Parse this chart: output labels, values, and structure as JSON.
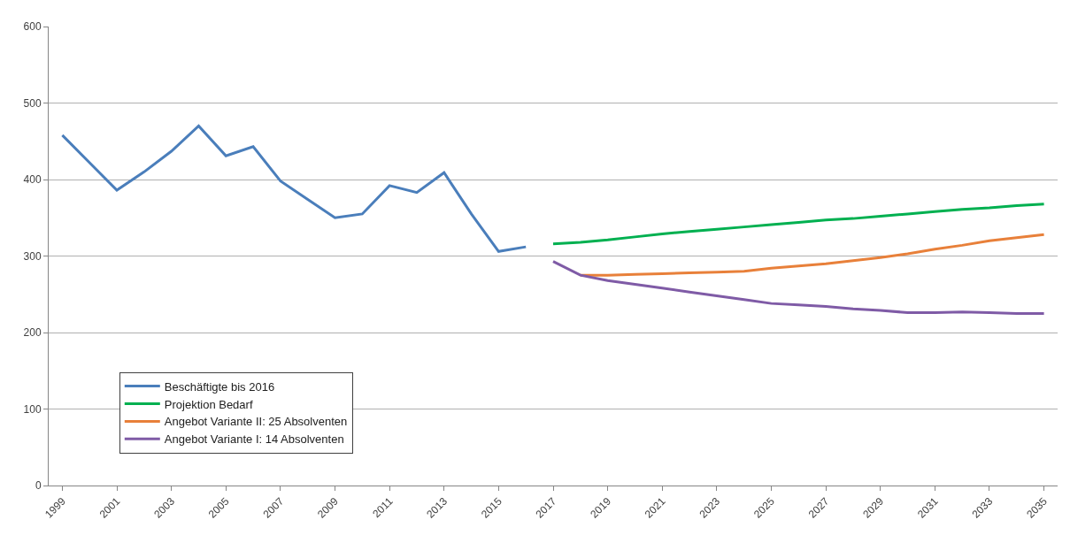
{
  "chart_data": {
    "type": "line",
    "categories": [
      "1999",
      null,
      "2001",
      null,
      "2003",
      null,
      "2005",
      null,
      "2007",
      null,
      "2009",
      null,
      "2011",
      null,
      "2013",
      null,
      "2015",
      null,
      "2017",
      null,
      "2019",
      null,
      "2021",
      null,
      "2023",
      null,
      "2025",
      null,
      "2027",
      null,
      "2029",
      null,
      "2031",
      null,
      "2033",
      null,
      "2035"
    ],
    "series": [
      {
        "name": "Beschäftigte bis 2016",
        "color": "#4a7ebb",
        "values": [
          458,
          422,
          386,
          410,
          437,
          470,
          431,
          443,
          398,
          374,
          350,
          355,
          392,
          383,
          409,
          355,
          306,
          312,
          null,
          null,
          null,
          null,
          null,
          null,
          null,
          null,
          null,
          null,
          null,
          null,
          null,
          null,
          null,
          null,
          null,
          null,
          null
        ]
      },
      {
        "name": "Projektion Bedarf",
        "color": "#00b050",
        "values": [
          null,
          null,
          null,
          null,
          null,
          null,
          null,
          null,
          null,
          null,
          null,
          null,
          null,
          null,
          null,
          null,
          null,
          null,
          316,
          318,
          321,
          325,
          329,
          332,
          335,
          338,
          341,
          344,
          347,
          349,
          352,
          355,
          358,
          361,
          363,
          366,
          368
        ]
      },
      {
        "name": "Angebot Variante II: 25 Absolventen",
        "color": "#e8803a",
        "values": [
          null,
          null,
          null,
          null,
          null,
          null,
          null,
          null,
          null,
          null,
          null,
          null,
          null,
          null,
          null,
          null,
          null,
          null,
          null,
          275,
          275,
          276,
          277,
          278,
          279,
          280,
          284,
          287,
          290,
          294,
          298,
          303,
          309,
          314,
          320,
          324,
          328
        ]
      },
      {
        "name": "Angebot Variante I: 14 Absolventen",
        "color": "#7f5ba6",
        "values": [
          null,
          null,
          null,
          null,
          null,
          null,
          null,
          null,
          null,
          null,
          null,
          null,
          null,
          null,
          null,
          null,
          null,
          null,
          293,
          275,
          268,
          263,
          258,
          253,
          248,
          243,
          238,
          236,
          234,
          231,
          229,
          226,
          226,
          227,
          226,
          225,
          225
        ]
      }
    ],
    "ylim": [
      0,
      600
    ],
    "yticks": [
      0,
      100,
      200,
      300,
      400,
      500,
      600
    ],
    "grid": "y",
    "legend": "bottom left",
    "marker": "none",
    "line_style": "solid"
  }
}
